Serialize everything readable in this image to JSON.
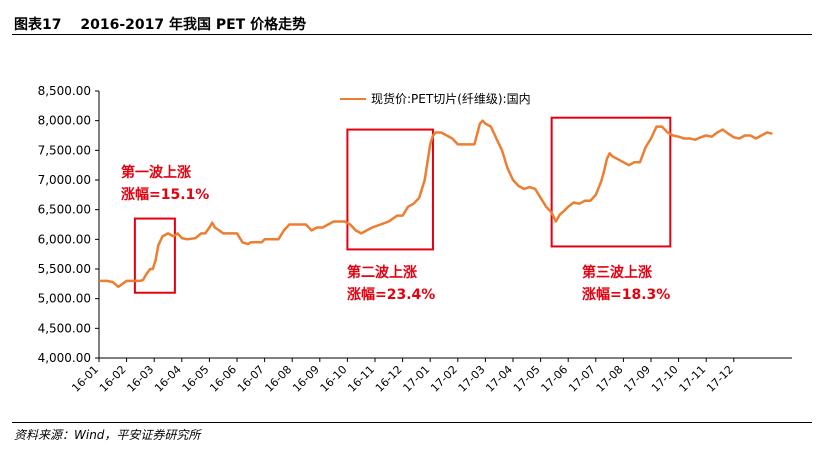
{
  "figure": {
    "label": "图表17",
    "title": "2016-2017 年我国 PET 价格走势",
    "source": "资料来源：Wind，平安证券研究所"
  },
  "colors": {
    "line": "#ed7d31",
    "annotation": "#e3000f",
    "axis": "#000000"
  },
  "chart_data": {
    "type": "line",
    "title": "2016-2017 年我国 PET 价格走势",
    "xlabel": "",
    "ylabel": "",
    "ylim": [
      4000,
      8500
    ],
    "yticks": [
      "8,500.00",
      "8,000.00",
      "7,500.00",
      "7,000.00",
      "6,500.00",
      "6,000.00",
      "5,500.00",
      "5,000.00",
      "4,500.00",
      "4,000.00"
    ],
    "ytick_values": [
      8500,
      8000,
      7500,
      7000,
      6500,
      6000,
      5500,
      5000,
      4500,
      4000
    ],
    "xticks": [
      "16-01",
      "16-02",
      "16-03",
      "16-04",
      "16-05",
      "16-06",
      "16-07",
      "16-08",
      "16-09",
      "16-10",
      "16-11",
      "16-12",
      "17-01",
      "17-02",
      "17-03",
      "17-04",
      "17-05",
      "17-06",
      "17-07",
      "17-08",
      "17-09",
      "17-10",
      "17-11",
      "17-12"
    ],
    "grid": false,
    "legend": "top-center",
    "series": [
      {
        "name": "现货价:PET切片(纤维级):国内",
        "x": [
          0,
          0.3,
          0.5,
          0.7,
          1.0,
          1.2,
          1.35,
          1.5,
          1.6,
          1.7,
          1.85,
          1.95,
          2.05,
          2.15,
          2.3,
          2.5,
          2.7,
          2.85,
          3.0,
          3.2,
          3.5,
          3.7,
          3.85,
          4.0,
          4.1,
          4.2,
          4.35,
          4.5,
          4.65,
          4.8,
          5.0,
          5.2,
          5.4,
          5.5,
          5.6,
          5.75,
          5.9,
          6.0,
          6.2,
          6.5,
          6.7,
          6.9,
          7.1,
          7.3,
          7.5,
          7.7,
          7.9,
          8.1,
          8.3,
          8.5,
          8.7,
          8.9,
          9.1,
          9.3,
          9.5,
          9.7,
          9.9,
          10.2,
          10.5,
          10.8,
          11.0,
          11.2,
          11.4,
          11.6,
          11.8,
          12.0,
          12.1,
          12.2,
          12.4,
          12.6,
          12.8,
          12.9,
          13.0,
          13.1,
          13.3,
          13.5,
          13.6,
          13.8,
          13.9,
          14.0,
          14.2,
          14.4,
          14.6,
          14.8,
          15.0,
          15.2,
          15.4,
          15.6,
          15.8,
          16.0,
          16.2,
          16.4,
          16.55,
          16.7,
          16.85,
          17.0,
          17.2,
          17.4,
          17.6,
          17.8,
          18.0,
          18.2,
          18.3,
          18.4,
          18.5,
          18.6,
          18.8,
          19.0,
          19.2,
          19.4,
          19.6,
          19.8,
          20.0,
          20.2,
          20.4,
          20.6,
          20.8,
          21.0,
          21.2,
          21.4,
          21.6,
          21.8,
          22.0,
          22.2,
          22.4,
          22.6,
          22.8,
          23.0,
          23.2,
          23.4,
          23.6,
          23.8,
          24.0,
          24.2,
          24.4
        ],
        "values": [
          5300,
          5300,
          5280,
          5200,
          5300,
          5300,
          5300,
          5300,
          5320,
          5400,
          5500,
          5500,
          5650,
          5900,
          6050,
          6100,
          6050,
          6100,
          6020,
          6000,
          6020,
          6100,
          6100,
          6200,
          6280,
          6200,
          6150,
          6100,
          6100,
          6100,
          6100,
          5950,
          5920,
          5950,
          5950,
          5950,
          5950,
          6000,
          6000,
          6000,
          6150,
          6250,
          6250,
          6250,
          6250,
          6150,
          6200,
          6200,
          6250,
          6300,
          6300,
          6300,
          6250,
          6150,
          6100,
          6150,
          6200,
          6250,
          6300,
          6400,
          6400,
          6550,
          6600,
          6700,
          7000,
          7600,
          7750,
          7800,
          7800,
          7750,
          7700,
          7650,
          7600,
          7600,
          7600,
          7600,
          7600,
          7950,
          8000,
          7950,
          7900,
          7700,
          7500,
          7200,
          7000,
          6900,
          6850,
          6880,
          6850,
          6700,
          6550,
          6450,
          6300,
          6420,
          6480,
          6550,
          6620,
          6600,
          6650,
          6650,
          6750,
          6980,
          7150,
          7350,
          7450,
          7400,
          7350,
          7300,
          7250,
          7300,
          7300,
          7550,
          7700,
          7900,
          7900,
          7800,
          7750,
          7730,
          7700,
          7700,
          7680,
          7720,
          7750,
          7730,
          7800,
          7850,
          7780,
          7720,
          7700,
          7750,
          7750,
          7700,
          7750,
          7800,
          7780
        ]
      }
    ],
    "annotations": [
      {
        "line1": "第一波上涨",
        "line2": "涨幅=15.1%"
      },
      {
        "line1": "第二波上涨",
        "line2": "涨幅=23.4%"
      },
      {
        "line1": "第三波上涨",
        "line2": "涨幅=18.3%"
      }
    ]
  }
}
